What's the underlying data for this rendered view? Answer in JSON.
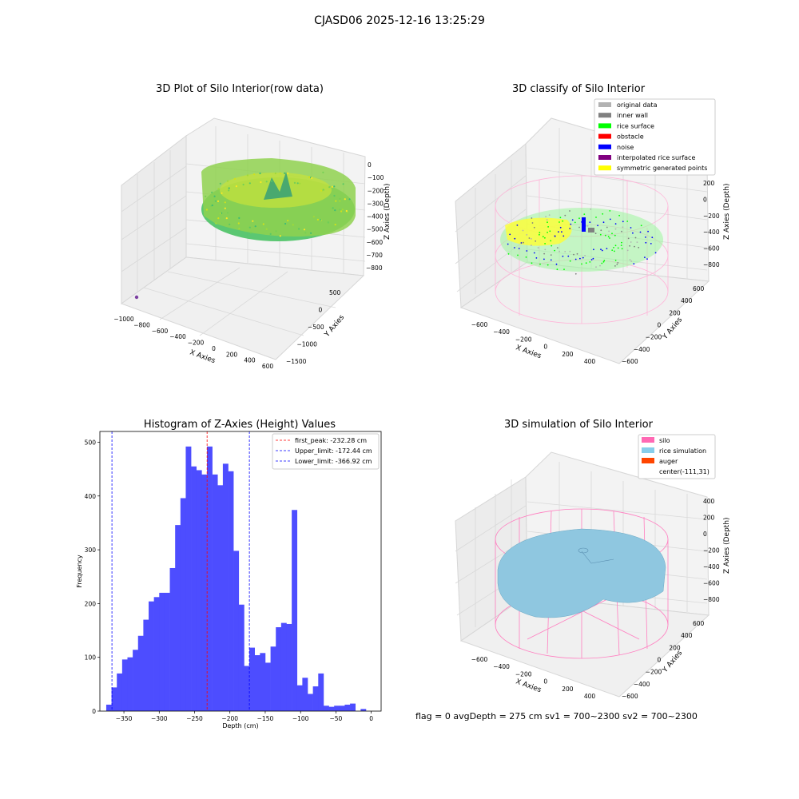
{
  "figure": {
    "suptitle": "CJASD06 2025-12-16 13:25:29",
    "status_line": "flag = 0     avgDepth = 275 cm  sv1 = 700~2300  sv2 = 700~2300"
  },
  "colors": {
    "hist_bar": "#4d4dff",
    "first_peak": "#ff0000",
    "limits": "#0000ff",
    "silo": "#ff69b4",
    "rice_simulation": "#87ceeb",
    "auger": "#ff4500",
    "original_data": "#b2b2b2",
    "inner_wall": "#808080",
    "rice_surface": "#00ff00",
    "obstacle": "#ff0000",
    "noise": "#0000ff",
    "interpolated_rice_surface": "#800080",
    "symmetric_generated_points": "#ffff00"
  },
  "chart_data": [
    {
      "type": "scatter",
      "subtype": "3d",
      "title": "3D Plot of Silo Interior(row data)",
      "xlabel": "X Axies",
      "ylabel": "Y Axies",
      "zlabel": "Z Axies (Depth)",
      "x_ticks": [
        "−1000",
        "−800",
        "−600",
        "−400",
        "−200",
        "0",
        "200",
        "400",
        "600"
      ],
      "y_ticks": [
        "500",
        "0",
        "−500",
        "−1000",
        "−1500"
      ],
      "z_ticks": [
        "0",
        "−100",
        "−200",
        "−300",
        "−400",
        "−500",
        "−600",
        "−700",
        "−800"
      ]
    },
    {
      "type": "scatter",
      "subtype": "3d",
      "title": "3D classify of Silo Interior",
      "xlabel": "X Axies",
      "ylabel": "Y Axies",
      "zlabel": "Z Axies (Depth)",
      "x_ticks": [
        "−600",
        "−400",
        "−200",
        "0",
        "200",
        "400"
      ],
      "y_ticks": [
        "600",
        "400",
        "200",
        "0",
        "−200",
        "−400",
        "−600"
      ],
      "z_ticks": [
        "200",
        "0",
        "−200",
        "−400",
        "−600",
        "−800"
      ],
      "legend": [
        "original data",
        "inner wall",
        "rice surface",
        "obstacle",
        "noise",
        "interpolated rice surface",
        "symmetric generated points"
      ],
      "legend_position": "top-right"
    },
    {
      "type": "bar",
      "subtype": "histogram",
      "title": "Histogram of Z-Axies (Height) Values",
      "xlabel": "Depth (cm)",
      "ylabel": "Frequency",
      "xlim": [
        -384,
        14
      ],
      "ylim": [
        0,
        520
      ],
      "bin_start": -375,
      "bin_width": 7.5,
      "values": [
        12,
        44,
        70,
        96,
        100,
        114,
        140,
        170,
        204,
        212,
        220,
        220,
        266,
        346,
        396,
        492,
        455,
        448,
        440,
        492,
        440,
        420,
        460,
        446,
        298,
        198,
        84,
        118,
        104,
        108,
        90,
        120,
        156,
        164,
        162,
        374,
        48,
        62,
        32,
        46,
        70,
        10,
        8,
        10,
        10,
        12,
        14,
        0,
        4
      ],
      "x_ticks": [
        "−350",
        "−300",
        "−250",
        "−200",
        "−150",
        "−100",
        "−50",
        "0"
      ],
      "x_tick_values": [
        -350,
        -300,
        -250,
        -200,
        -150,
        -100,
        -50,
        0
      ],
      "y_ticks": [
        "0",
        "100",
        "200",
        "300",
        "400",
        "500"
      ],
      "y_tick_values": [
        0,
        100,
        200,
        300,
        400,
        500
      ],
      "vlines": [
        {
          "label": "first_peak: -232.28 cm",
          "value": -232.28,
          "color": "#ff0000"
        },
        {
          "label": "Upper_limit: -172.44 cm",
          "value": -172.44,
          "color": "#0000ff"
        },
        {
          "label": "Lower_limit: -366.92 cm",
          "value": -366.92,
          "color": "#0000ff"
        }
      ],
      "legend_position": "top-right"
    },
    {
      "type": "scatter",
      "subtype": "3d-surface",
      "title": "3D simulation of Silo Interior",
      "xlabel": "X Axies",
      "ylabel": "Y Axies",
      "zlabel": "Z Axies (Depth)",
      "x_ticks": [
        "−600",
        "−400",
        "−200",
        "0",
        "200",
        "400"
      ],
      "y_ticks": [
        "600",
        "400",
        "200",
        "0",
        "−200",
        "−400",
        "−600"
      ],
      "z_ticks": [
        "400",
        "200",
        "0",
        "−200",
        "−400",
        "−600",
        "−800"
      ],
      "legend": [
        "silo",
        "rice simulation",
        "auger",
        "center(-111,31)"
      ],
      "legend_position": "top-right"
    }
  ]
}
